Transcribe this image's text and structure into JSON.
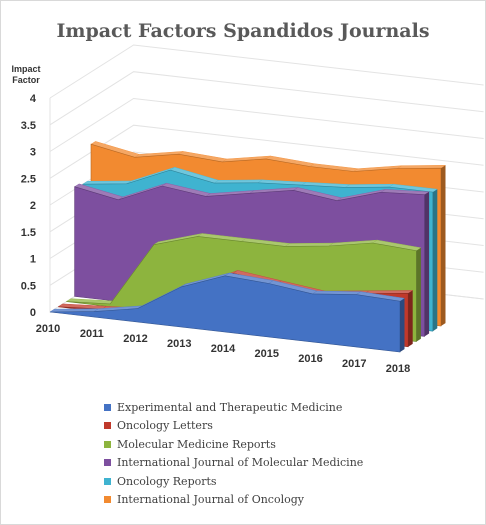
{
  "chart_data": {
    "type": "area",
    "title": "Impact Factors Spandidos Journals",
    "ylabel_lines": [
      "Impact",
      "Factor"
    ],
    "xlabel": "",
    "ylim": [
      0,
      4
    ],
    "yticks": [
      "0",
      "0.5",
      "1",
      "1.5",
      "2",
      "2.5",
      "3",
      "3.5",
      "4"
    ],
    "categories": [
      "2010",
      "2011",
      "2012",
      "2013",
      "2014",
      "2015",
      "2016",
      "2017",
      "2018"
    ],
    "grid": true,
    "legend_position": "bottom",
    "series": [
      {
        "name": "Experimental and Therapeutic Medicine",
        "color": "#4472c4",
        "values": [
          0.0,
          0.1,
          0.25,
          0.75,
          1.05,
          1.0,
          0.9,
          0.98,
          0.95
        ]
      },
      {
        "name": "Oncology Letters",
        "color": "#c0392b",
        "values": [
          0.0,
          0.05,
          0.1,
          0.6,
          1.0,
          0.9,
          0.8,
          0.9,
          1.0
        ]
      },
      {
        "name": "Molecular Medicine Reports",
        "color": "#8db43e",
        "values": [
          0.0,
          0.05,
          1.25,
          1.5,
          1.5,
          1.5,
          1.6,
          1.75,
          1.7
        ]
      },
      {
        "name": "International Journal of Molecular Medicine",
        "color": "#7d4f9f",
        "values": [
          2.05,
          1.9,
          2.25,
          2.15,
          2.3,
          2.45,
          2.35,
          2.6,
          2.65
        ]
      },
      {
        "name": "Oncology Reports",
        "color": "#3fb3d0",
        "values": [
          2.0,
          2.1,
          2.45,
          2.3,
          2.4,
          2.45,
          2.5,
          2.6,
          2.6
        ]
      },
      {
        "name": "International Journal of Oncology",
        "color": "#f28a30",
        "values": [
          2.65,
          2.5,
          2.65,
          2.6,
          2.75,
          2.7,
          2.7,
          2.85,
          2.95
        ]
      }
    ]
  }
}
